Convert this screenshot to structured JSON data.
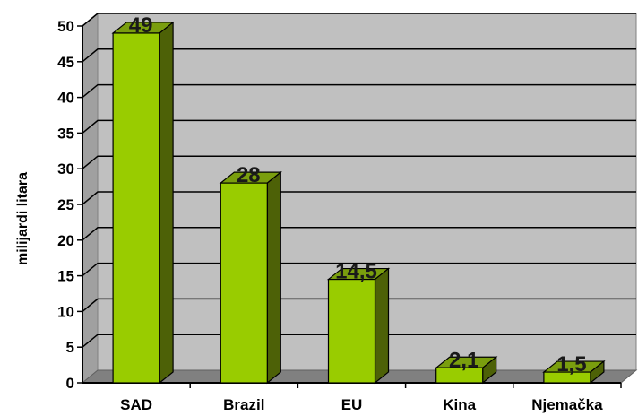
{
  "chart_data": {
    "type": "bar",
    "style": "3d-column",
    "categories": [
      "SAD",
      "Brazil",
      "EU",
      "Kina",
      "Njemačka"
    ],
    "values": [
      49,
      28,
      14.5,
      2.1,
      1.5
    ],
    "data_labels": [
      "49",
      "28",
      "14,5",
      "2,1",
      "1,5"
    ],
    "title": "",
    "xlabel": "",
    "ylabel": "milijardi litara",
    "ylim": [
      0,
      50
    ],
    "yticks": [
      "0",
      "5",
      "10",
      "15",
      "20",
      "25",
      "30",
      "35",
      "40",
      "45",
      "50"
    ],
    "grid": true,
    "legend": "none",
    "colors": {
      "bar_front": "#99CC00",
      "bar_top": "#7A9E0E",
      "bar_side": "#4D6107",
      "plot_back_wall": "#C0C0C0",
      "plot_floor": "#808080",
      "gridline": "#000000",
      "background": "#FFFFFF"
    }
  }
}
